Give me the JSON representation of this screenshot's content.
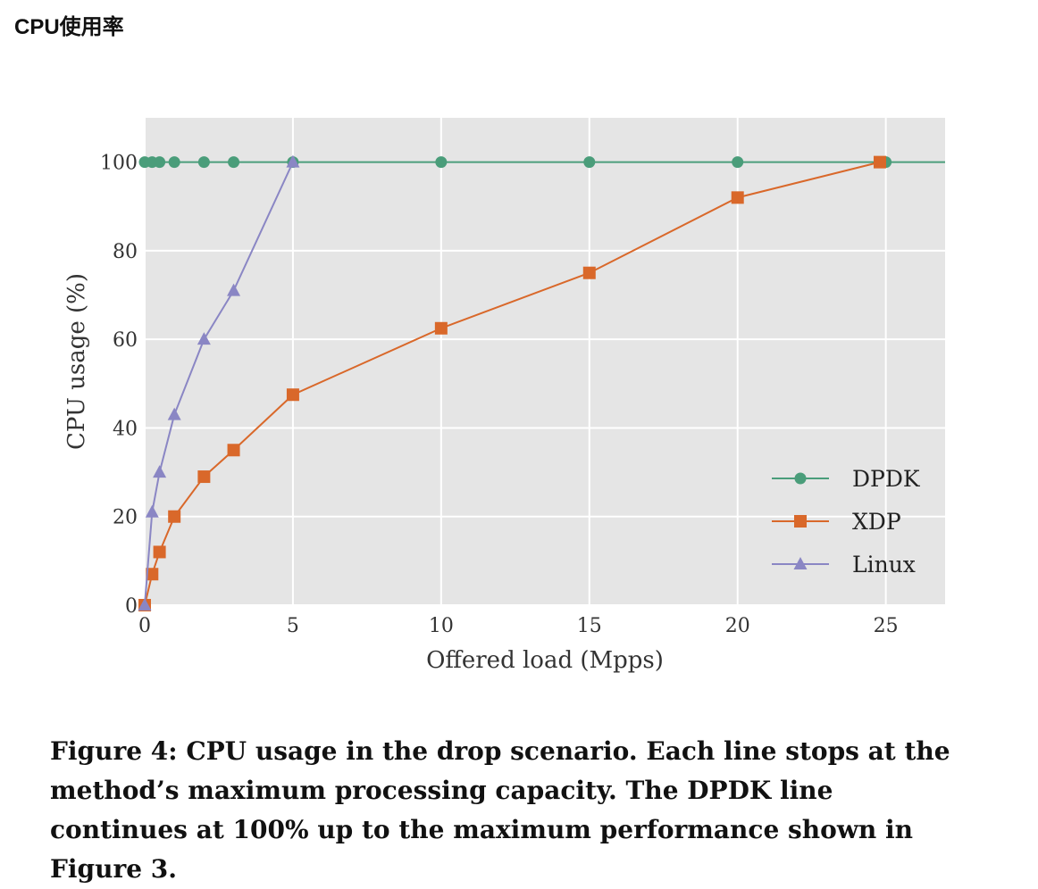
{
  "page": {
    "heading": "CPU使用率",
    "caption": "Figure 4:  CPU usage in the drop scenario. Each line stops at the method’s maximum processing capacity. The DPDK line continues at 100% up to the maximum performance shown in Figure 3."
  },
  "chart_data": {
    "type": "line",
    "title": "",
    "xlabel": "Offered load (Mpps)",
    "ylabel": "CPU usage (%)",
    "xlim": [
      0,
      27
    ],
    "ylim": [
      0,
      110
    ],
    "xticks": [
      0,
      5,
      10,
      15,
      20,
      25
    ],
    "yticks": [
      0,
      20,
      40,
      60,
      80,
      100
    ],
    "grid": true,
    "background": "#e5e5e5",
    "legend_position": "bottom-right",
    "series": [
      {
        "name": "DPDK",
        "color": "#4a9d7a",
        "marker": "circle",
        "x": [
          0,
          0.25,
          0.5,
          1,
          2,
          3,
          5,
          10,
          15,
          20,
          25
        ],
        "y": [
          100,
          100,
          100,
          100,
          100,
          100,
          100,
          100,
          100,
          100,
          100
        ],
        "extends_to_x": 27
      },
      {
        "name": "XDP",
        "color": "#d9682a",
        "marker": "square",
        "x": [
          0,
          0.25,
          0.5,
          1,
          2,
          3,
          5,
          10,
          15,
          20,
          24.8
        ],
        "y": [
          0,
          7,
          12,
          20,
          29,
          35,
          47.5,
          62.5,
          75,
          92,
          100
        ]
      },
      {
        "name": "Linux",
        "color": "#8a86c4",
        "marker": "triangle",
        "x": [
          0,
          0.25,
          0.5,
          1,
          2,
          3,
          5
        ],
        "y": [
          0,
          21,
          30,
          43,
          60,
          71,
          100
        ]
      }
    ]
  }
}
